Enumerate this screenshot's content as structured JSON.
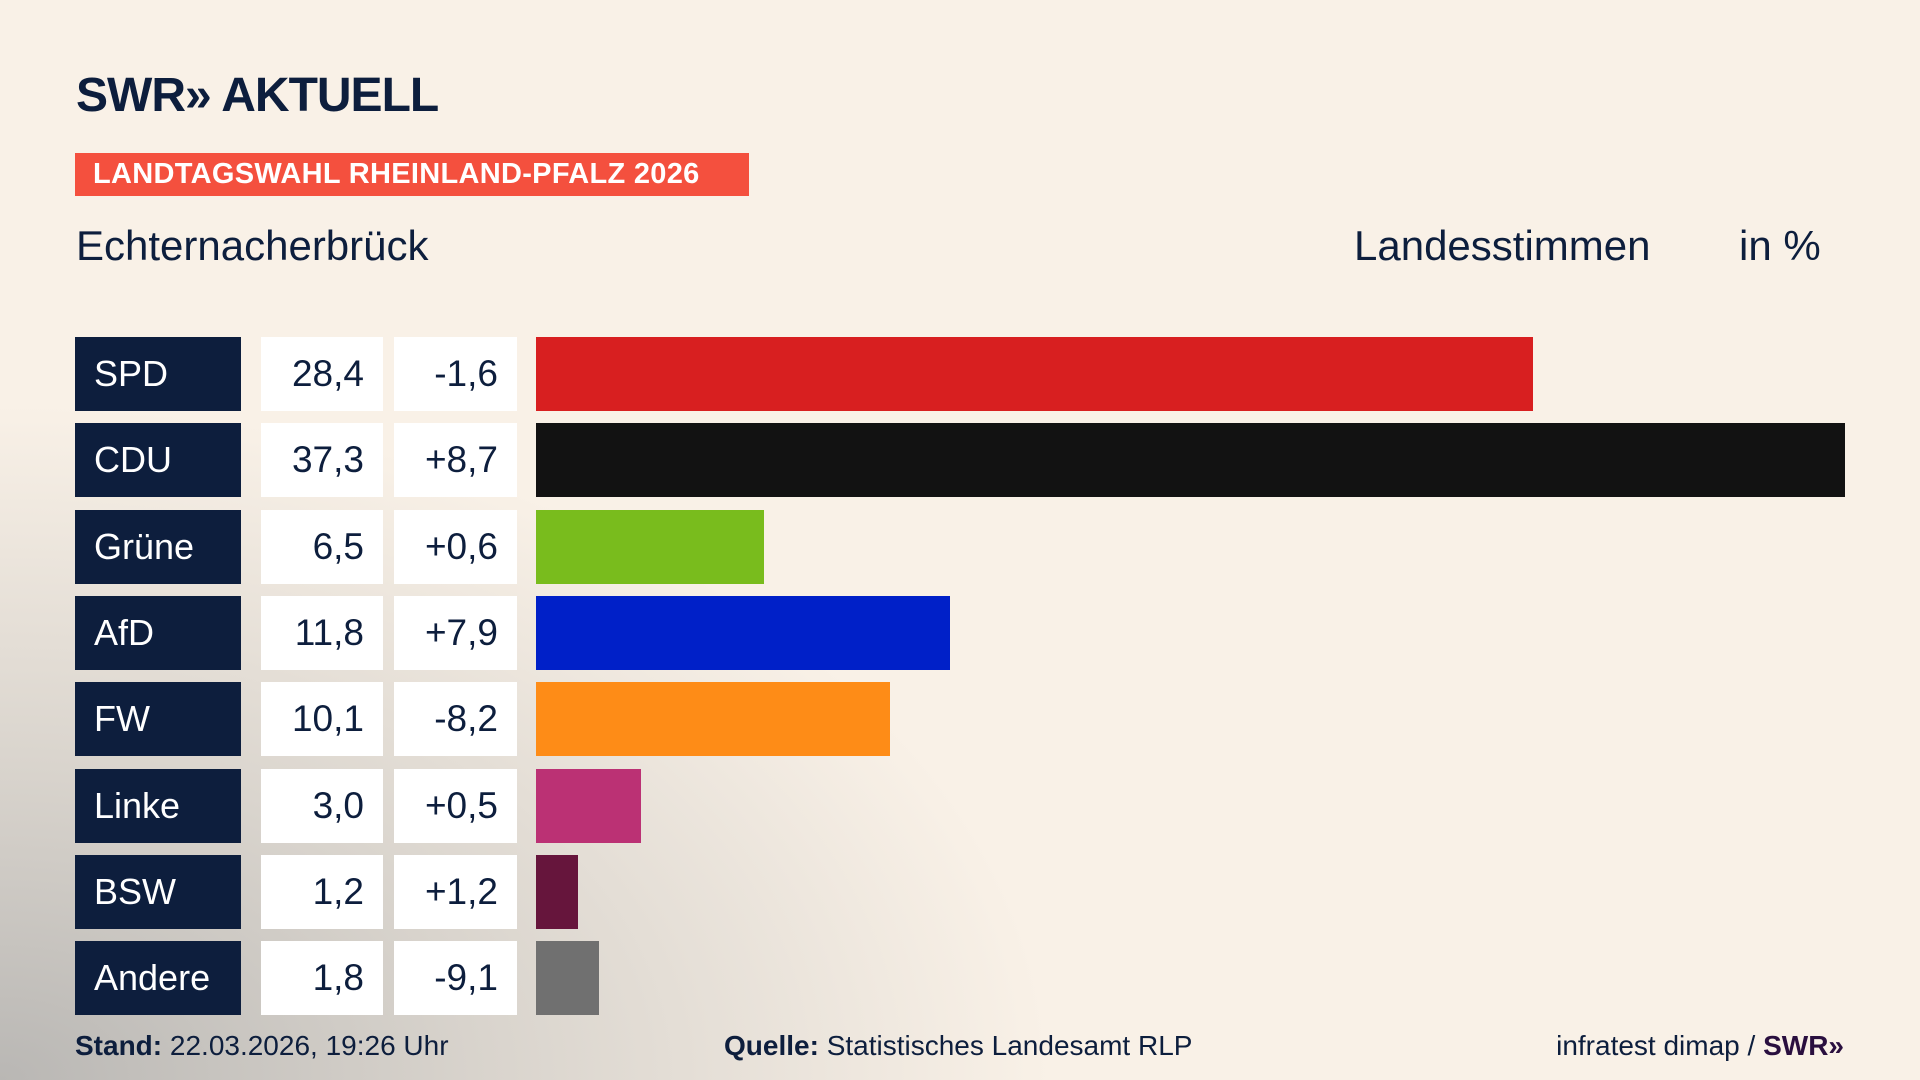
{
  "header": {
    "logo": "SWR» AKTUELL",
    "banner": "LANDTAGSWAHL RHEINLAND-PFALZ 2026",
    "place": "Echternacherbrück",
    "measure": "Landesstimmen",
    "unit": "in %"
  },
  "chart_data": {
    "type": "bar",
    "orientation": "horizontal",
    "categories": [
      "SPD",
      "CDU",
      "Grüne",
      "AfD",
      "FW",
      "Linke",
      "BSW",
      "Andere"
    ],
    "values": [
      28.4,
      37.3,
      6.5,
      11.8,
      10.1,
      3.0,
      1.2,
      1.8
    ],
    "value_labels": [
      "28,4",
      "37,3",
      "6,5",
      "11,8",
      "10,1",
      "3,0",
      "1,2",
      "1,8"
    ],
    "diff_labels": [
      "-1,6",
      "+8,7",
      "+0,6",
      "+7,9",
      "-8,2",
      "+0,5",
      "+1,2",
      "-9,1"
    ],
    "diffs": [
      -1.6,
      8.7,
      0.6,
      7.9,
      -8.2,
      0.5,
      1.2,
      -9.1
    ],
    "colors": [
      "#d81f20",
      "#121212",
      "#79bc1d",
      "#0020c8",
      "#fe8c17",
      "#bb3174",
      "#66153c",
      "#707070"
    ],
    "xlim": [
      0,
      37.3
    ],
    "grid": false
  },
  "footer": {
    "stand_label": "Stand:",
    "stand_value": "22.03.2026, 19:26 Uhr",
    "source_label": "Quelle:",
    "source_value": "Statistisches Landesamt RLP",
    "credit": "infratest dimap /",
    "credit_logo": "SWR»"
  }
}
